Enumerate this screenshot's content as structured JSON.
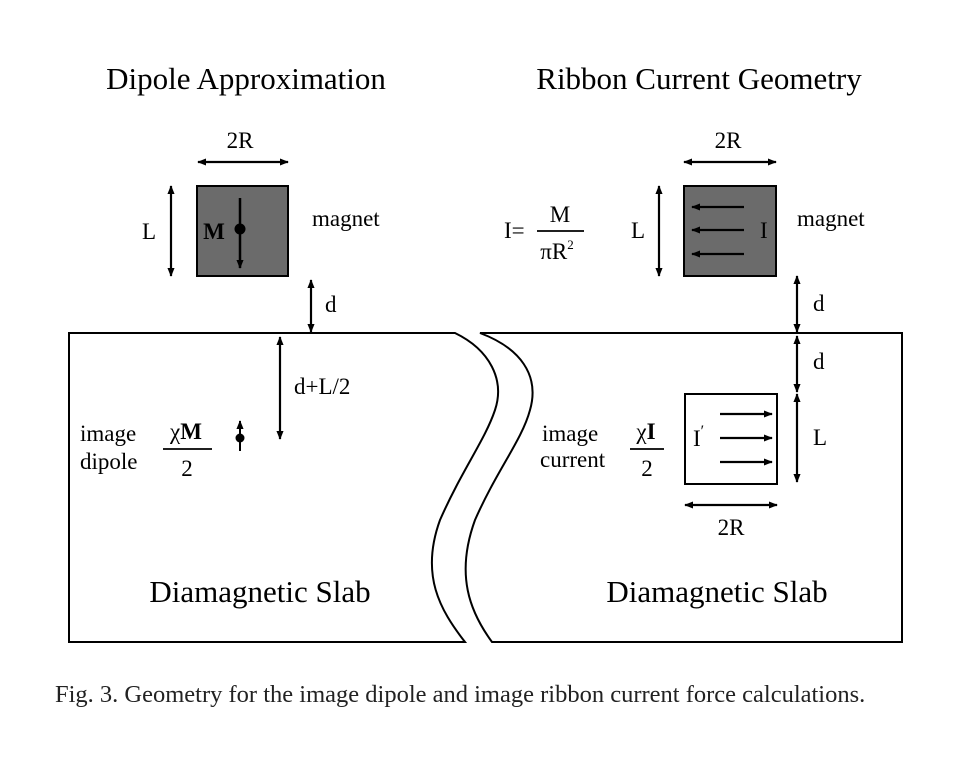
{
  "left_panel": {
    "title": "Dipole Approximation",
    "width_label": "2R",
    "length_label": "L",
    "magnet_moment_label": "M",
    "magnet_label": "magnet",
    "gap_label": "d",
    "image_distance_label": "d+L/2",
    "image_label_line1": "image",
    "image_label_line2": "dipole",
    "image_fraction_num_chi": "χ",
    "image_fraction_num_sym": "M",
    "image_fraction_den": "2",
    "slab_label": "Diamagnetic Slab"
  },
  "right_panel": {
    "title": "Ribbon Current Geometry",
    "width_label": "2R",
    "length_label": "L",
    "current_eq_lhs": "I=",
    "current_eq_num": "M",
    "current_eq_den": "πR",
    "current_eq_den_sup": "2",
    "magnet_current_label": "I",
    "magnet_label": "magnet",
    "gap_label": "d",
    "image_gap_label": "d",
    "image_length_label": "L",
    "image_width_label": "2R",
    "image_current_symbol": "I",
    "image_current_prime": "′",
    "image_label_line1": "image",
    "image_label_line2": "current",
    "image_fraction_num_chi": "χ",
    "image_fraction_num_sym": "I",
    "image_fraction_den": "2",
    "slab_label": "Diamagnetic Slab"
  },
  "caption": "Fig. 3. Geometry for the image dipole and image ribbon current force calculations.",
  "colors": {
    "magnet_fill": "#6b6b6b",
    "line": "#000000"
  }
}
